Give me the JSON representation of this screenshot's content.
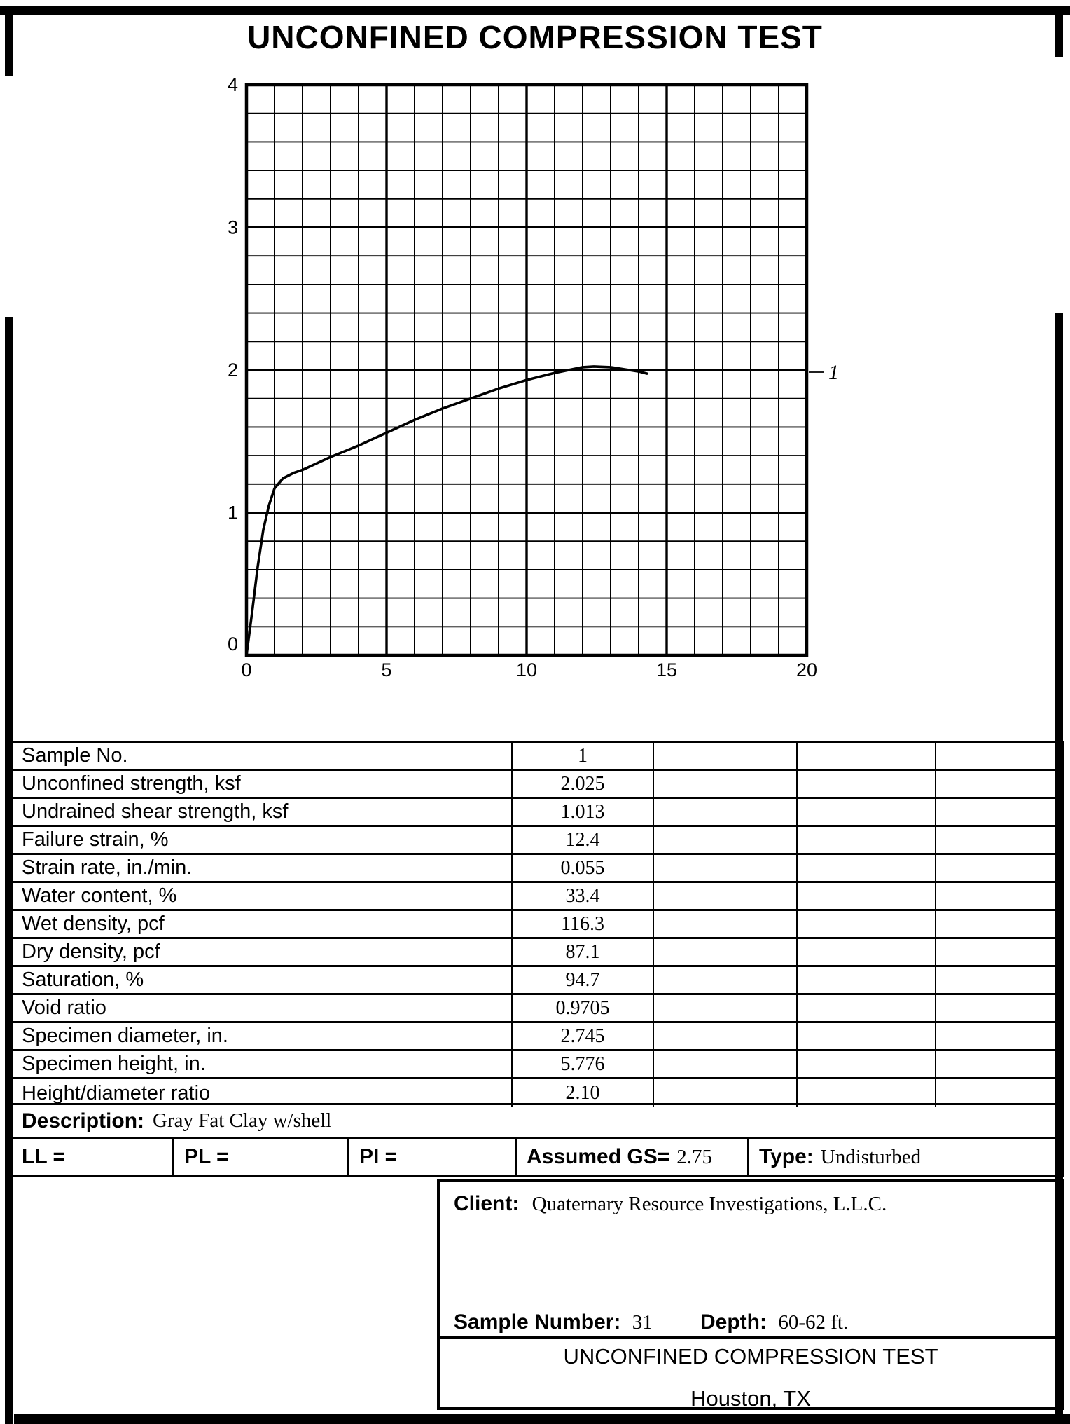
{
  "title": "UNCONFINED COMPRESSION TEST",
  "chart_data": {
    "type": "line",
    "title": "",
    "xlabel": "",
    "ylabel": "",
    "grid": "on",
    "x_axis": {
      "min": 0,
      "max": 20,
      "major_ticks": [
        0,
        5,
        10,
        15,
        20
      ],
      "minor_step": 1
    },
    "y_axis": {
      "min": 0,
      "max": 4,
      "major_ticks": [
        0,
        1,
        2,
        3,
        4
      ],
      "minor_step": 0.2
    },
    "legend_position": "right-of-plot",
    "series": [
      {
        "name": "1",
        "points": [
          [
            0,
            0
          ],
          [
            0.2,
            0.3
          ],
          [
            0.4,
            0.62
          ],
          [
            0.6,
            0.88
          ],
          [
            0.8,
            1.05
          ],
          [
            1.0,
            1.17
          ],
          [
            1.3,
            1.24
          ],
          [
            1.7,
            1.28
          ],
          [
            2.0,
            1.3
          ],
          [
            3.0,
            1.39
          ],
          [
            4.0,
            1.47
          ],
          [
            5.0,
            1.56
          ],
          [
            6.0,
            1.65
          ],
          [
            7.0,
            1.73
          ],
          [
            8.0,
            1.8
          ],
          [
            9.0,
            1.87
          ],
          [
            10.0,
            1.93
          ],
          [
            11.0,
            1.98
          ],
          [
            12.0,
            2.02
          ],
          [
            12.4,
            2.025
          ],
          [
            13.0,
            2.02
          ],
          [
            13.5,
            2.005
          ],
          [
            14.0,
            1.99
          ],
          [
            14.3,
            1.975
          ]
        ]
      }
    ]
  },
  "table": {
    "rows": [
      {
        "label": "Sample No.",
        "value": "1"
      },
      {
        "label": "Unconfined strength, ksf",
        "value": "2.025"
      },
      {
        "label": "Undrained shear strength, ksf",
        "value": "1.013"
      },
      {
        "label": "Failure strain, %",
        "value": "12.4"
      },
      {
        "label": "Strain rate, in./min.",
        "value": "0.055"
      },
      {
        "label": "Water content, %",
        "value": "33.4"
      },
      {
        "label": "Wet density, pcf",
        "value": "116.3"
      },
      {
        "label": "Dry density, pcf",
        "value": "87.1"
      },
      {
        "label": "Saturation, %",
        "value": "94.7"
      },
      {
        "label": "Void ratio",
        "value": "0.9705"
      },
      {
        "label": "Specimen diameter, in.",
        "value": "2.745"
      },
      {
        "label": "Specimen height, in.",
        "value": "5.776"
      },
      {
        "label": "Height/diameter ratio",
        "value": "2.10"
      }
    ],
    "description": {
      "label": "Description:",
      "value": "Gray Fat Clay w/shell"
    },
    "atterberg": {
      "ll_label": "LL =",
      "pl_label": "PL =",
      "pi_label": "PI =",
      "gs_label": "Assumed GS=",
      "gs_value": "2.75",
      "type_label": "Type:",
      "type_value": "Undisturbed"
    }
  },
  "footer": {
    "client_label": "Client:",
    "client_value": "Quaternary Resource Investigations, L.L.C.",
    "sample_number_label": "Sample Number:",
    "sample_number_value": "31",
    "depth_label": "Depth:",
    "depth_value": "60-62 ft.",
    "test_title": "UNCONFINED COMPRESSION TEST",
    "location": "Houston, TX"
  }
}
